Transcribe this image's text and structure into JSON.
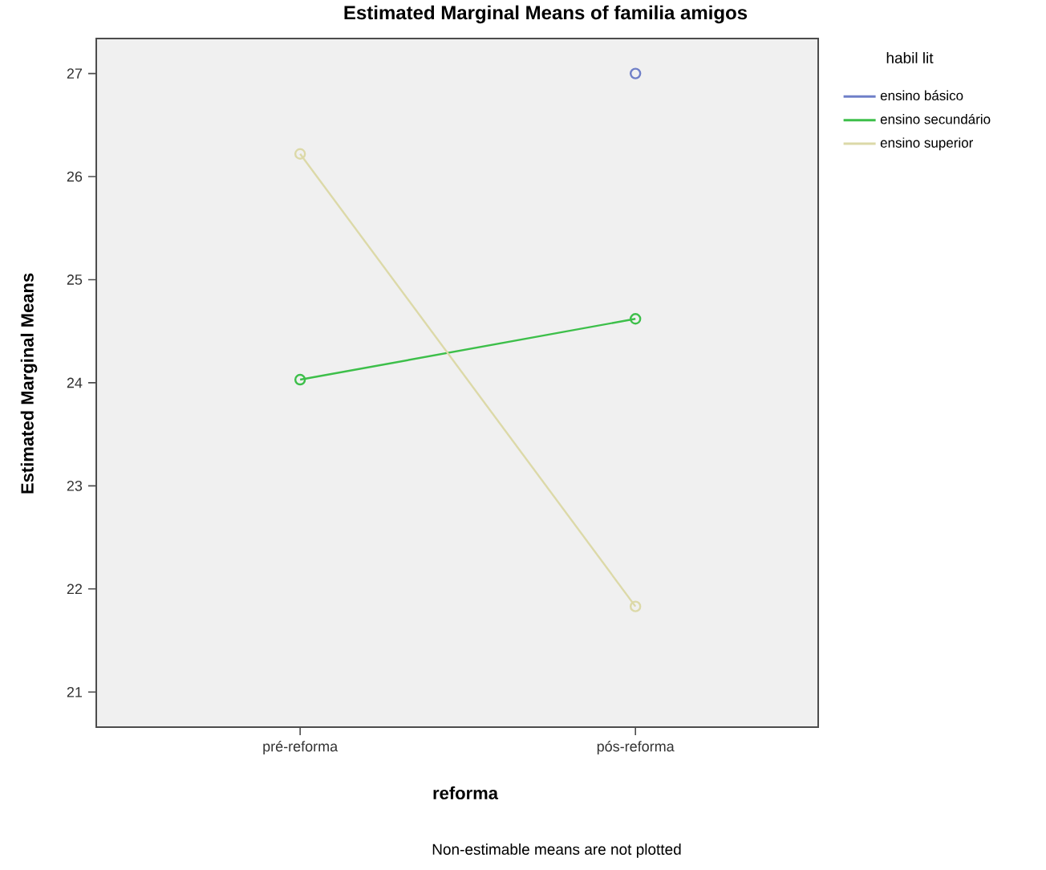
{
  "chart_data": {
    "type": "line",
    "title": "Estimated Marginal Means of familia amigos",
    "xlabel": "reforma",
    "ylabel": "Estimated Marginal Means",
    "legend_title": "habil lit",
    "categories": [
      "pré-reforma",
      "pós-reforma"
    ],
    "series": [
      {
        "name": "ensino básico",
        "color": "#6f7fc8",
        "values": [
          null,
          27.0
        ]
      },
      {
        "name": "ensino secundário",
        "color": "#3dbf4a",
        "values": [
          24.03,
          24.62
        ]
      },
      {
        "name": "ensino superior",
        "color": "#dcd9a8",
        "values": [
          26.22,
          21.83
        ]
      }
    ],
    "ylim": [
      20.66,
      27.34
    ],
    "yticks": [
      21,
      22,
      23,
      24,
      25,
      26,
      27
    ],
    "marker": "circle",
    "line_style": "solid",
    "grid": false,
    "legend": "right",
    "annotations": [
      "Non-estimable means are not plotted"
    ]
  }
}
